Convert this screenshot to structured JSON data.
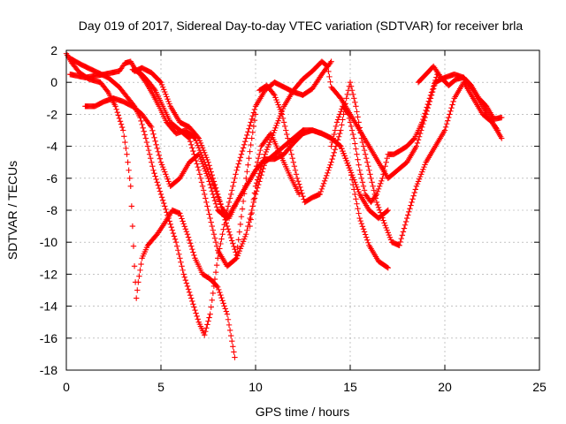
{
  "chart_data": {
    "type": "scatter",
    "title": "Day 019 of 2017, Sidereal Day-to-day VTEC variation (SDTVAR) for receiver brla",
    "xlabel": "GPS time / hours",
    "ylabel": "SDTVAR / TECUs",
    "xlim": [
      0,
      25
    ],
    "ylim": [
      -18,
      2
    ],
    "xticks": [
      0,
      5,
      10,
      15,
      20,
      25
    ],
    "yticks": [
      -18,
      -16,
      -14,
      -12,
      -10,
      -8,
      -6,
      -4,
      -2,
      0,
      2
    ],
    "grid": true,
    "marker": "plus",
    "color": "#ff0000",
    "series": [
      {
        "x": [
          0.0,
          0.3,
          0.7,
          1.2,
          1.8,
          2.2,
          2.6,
          3.0,
          3.2,
          3.4,
          3.5,
          3.6,
          3.7,
          3.8,
          4.0,
          4.3,
          4.8,
          5.2,
          5.6,
          6.0,
          6.4,
          6.8,
          7.2,
          7.6,
          8.0,
          8.5,
          8.9
        ],
        "y": [
          1.8,
          1.2,
          0.6,
          0.2,
          0.0,
          -0.6,
          -1.5,
          -3.0,
          -4.5,
          -6.5,
          -9.0,
          -11.5,
          -13.5,
          -12.5,
          -11.0,
          -10.2,
          -9.5,
          -8.8,
          -8.0,
          -8.2,
          -9.5,
          -11.0,
          -12.0,
          -12.3,
          -12.8,
          -14.5,
          -17.2
        ]
      },
      {
        "x": [
          0.2,
          0.8,
          1.5,
          2.2,
          2.8,
          3.2,
          3.6,
          3.9,
          4.2,
          4.6,
          5.0,
          5.4,
          5.8,
          6.2,
          6.6,
          7.0,
          7.3,
          7.6,
          8.0,
          8.5,
          9.0,
          9.5,
          10.0,
          10.5,
          11.0,
          11.5,
          12.0,
          12.5,
          13.0,
          13.5,
          14.0
        ],
        "y": [
          1.5,
          1.1,
          0.7,
          0.3,
          -0.3,
          -0.9,
          -1.5,
          -2.2,
          -3.5,
          -5.5,
          -7.0,
          -8.5,
          -10.0,
          -12.0,
          -13.5,
          -15.0,
          -15.8,
          -14.5,
          -11.0,
          -8.0,
          -5.5,
          -3.5,
          -1.5,
          -0.5,
          0.0,
          -0.3,
          -0.6,
          -0.8,
          -0.4,
          0.5,
          1.3
        ]
      },
      {
        "x": [
          0.2,
          1.0,
          2.0,
          2.8,
          3.1,
          3.4,
          3.6,
          3.9,
          4.2,
          4.5,
          4.9,
          5.3,
          5.8,
          6.3,
          6.8,
          7.3,
          7.8,
          8.2,
          8.6,
          9.0,
          9.5,
          10.0,
          10.5,
          11.0,
          11.5,
          12.0,
          12.5,
          13.0,
          13.5,
          14.0,
          14.5,
          15.0,
          15.5,
          16.0,
          16.5,
          17.0
        ],
        "y": [
          0.5,
          0.3,
          0.5,
          0.7,
          1.2,
          1.3,
          0.9,
          0.5,
          0.0,
          -0.6,
          -1.5,
          -2.5,
          -3.2,
          -3.0,
          -3.5,
          -5.0,
          -6.5,
          -7.8,
          -8.5,
          -7.5,
          -6.5,
          -5.5,
          -4.8,
          -4.8,
          -4.5,
          -3.8,
          -3.2,
          -3.0,
          -3.2,
          -3.5,
          -4.0,
          -5.5,
          -8.5,
          -10.2,
          -11.2,
          -11.6
        ]
      },
      {
        "x": [
          1.0,
          1.5,
          2.0,
          2.5,
          3.0,
          3.5,
          4.0,
          4.5,
          5.0,
          5.5,
          6.0,
          6.5,
          7.0,
          7.5,
          8.0,
          8.5,
          9.0,
          9.5,
          10.0,
          10.3,
          10.8,
          11.3,
          11.8,
          12.3
        ],
        "y": [
          -1.5,
          -1.5,
          -1.2,
          -1.0,
          -1.2,
          -1.5,
          -2.0,
          -2.8,
          -5.0,
          -6.5,
          -6.0,
          -5.0,
          -4.5,
          -6.0,
          -8.0,
          -8.5,
          -7.5,
          -6.5,
          -5.5,
          -4.0,
          -3.2,
          -4.5,
          -5.8,
          -7.0
        ]
      },
      {
        "x": [
          3.5,
          3.9,
          4.3,
          4.7,
          5.1,
          5.5,
          6.0,
          6.5,
          7.0,
          7.5,
          8.0,
          8.5,
          9.0,
          9.5,
          10.0,
          10.5,
          11.0,
          11.5,
          12.0,
          12.5,
          13.0,
          13.5,
          14.0,
          14.5,
          15.0,
          15.5,
          16.0,
          16.5,
          17.0
        ],
        "y": [
          0.8,
          0.6,
          0.1,
          -0.5,
          -1.5,
          -2.5,
          -3.0,
          -3.5,
          -5.5,
          -8.0,
          -10.5,
          -11.5,
          -11.0,
          -9.5,
          -7.0,
          -5.0,
          -4.5,
          -4.0,
          -3.5,
          -3.0,
          -3.0,
          -3.2,
          -3.5,
          -4.0,
          -5.5,
          -7.0,
          -8.0,
          -8.5,
          -8.0
        ]
      },
      {
        "x": [
          3.6,
          4.0,
          4.5,
          5.0,
          5.5,
          6.0,
          6.5,
          7.0,
          7.5,
          8.0,
          8.5,
          9.0,
          9.5,
          9.8,
          10.0
        ],
        "y": [
          0.7,
          0.9,
          0.6,
          0.0,
          -1.5,
          -2.5,
          -2.8,
          -3.5,
          -5.0,
          -7.0,
          -9.0,
          -10.8,
          -6.0,
          -3.5,
          -2.0
        ]
      },
      {
        "x": [
          9.7,
          10.0,
          10.5,
          11.0,
          11.5,
          12.0,
          12.5,
          13.0,
          13.5,
          13.8,
          14.0,
          14.5,
          15.0,
          15.5,
          16.0,
          16.5,
          17.0,
          17.5,
          18.0,
          18.5,
          19.0,
          19.5,
          20.0,
          20.5,
          21.0,
          21.5,
          22.0,
          22.5,
          23.0
        ],
        "y": [
          -9.0,
          -6.5,
          -4.5,
          -3.0,
          -1.5,
          -0.5,
          0.2,
          0.7,
          1.3,
          1.0,
          -0.3,
          -1.0,
          -2.0,
          -3.0,
          -4.0,
          -5.0,
          -6.0,
          -5.5,
          -5.0,
          -4.0,
          -2.0,
          0.0,
          0.3,
          0.5,
          0.3,
          -0.5,
          -1.5,
          -2.5,
          -3.5
        ]
      },
      {
        "x": [
          10.2,
          10.6,
          11.0,
          11.4,
          11.8,
          12.2,
          12.6,
          13.0,
          13.4,
          14.0,
          14.5,
          14.8,
          15.0,
          15.3,
          15.6,
          16.0,
          16.4,
          16.8,
          17.2,
          17.6,
          18.0,
          18.5,
          19.0,
          19.5,
          20.0,
          20.5,
          21.0,
          21.5,
          22.0,
          22.5,
          22.8
        ],
        "y": [
          -0.5,
          -0.2,
          -0.8,
          -2.0,
          -4.0,
          -6.0,
          -7.5,
          -7.2,
          -7.0,
          -5.0,
          -3.0,
          -1.0,
          0.0,
          -1.5,
          -3.5,
          -5.5,
          -7.5,
          -8.8,
          -10.0,
          -10.2,
          -8.5,
          -6.5,
          -5.0,
          -4.0,
          -3.0,
          -1.0,
          0.0,
          -1.0,
          -2.0,
          -2.5,
          -3.0
        ]
      },
      {
        "x": [
          14.0,
          14.3,
          14.6,
          14.9,
          15.2,
          15.5,
          15.8,
          16.1,
          16.4,
          16.7,
          17.0,
          17.3,
          17.6,
          18.0,
          18.4,
          18.8,
          19.2,
          19.6
        ],
        "y": [
          -4.0,
          -2.5,
          -1.5,
          -2.0,
          -3.5,
          -5.5,
          -7.0,
          -7.5,
          -7.0,
          -6.0,
          -4.5,
          -4.5,
          -4.3,
          -4.0,
          -3.5,
          -2.5,
          -1.0,
          0.5
        ]
      },
      {
        "x": [
          18.6,
          19.0,
          19.4,
          19.8,
          20.2,
          20.6,
          21.0,
          21.4,
          21.8,
          22.2,
          22.6,
          23.0
        ],
        "y": [
          0.0,
          0.5,
          1.0,
          0.3,
          -0.2,
          0.2,
          0.3,
          -0.2,
          -1.0,
          -1.5,
          -2.3,
          -2.2
        ]
      }
    ]
  }
}
